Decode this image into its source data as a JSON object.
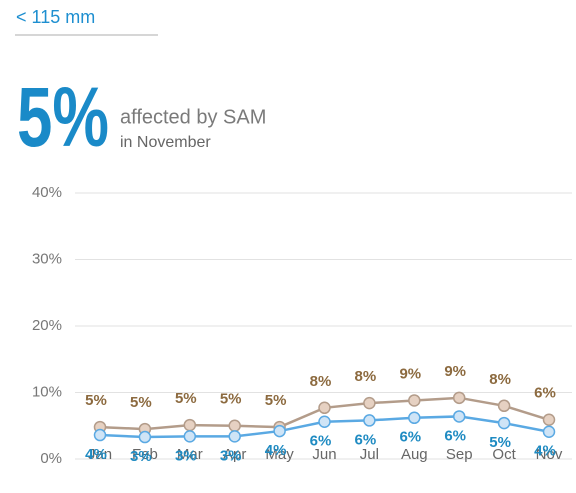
{
  "nav": {
    "back_link": "< 115 mm"
  },
  "headline": {
    "figure": "5%",
    "text": "affected by SAM",
    "subtext": "in November"
  },
  "chart_data": {
    "type": "line",
    "categories": [
      "Jan",
      "Feb",
      "Mar",
      "Apr",
      "May",
      "Jun",
      "Jul",
      "Aug",
      "Sep",
      "Oct",
      "Nov"
    ],
    "series": [
      {
        "color": "#b39c8a",
        "marker_color": "#e6d1c2",
        "label_color": "#8c6a3f",
        "label_position": "above",
        "values": [
          4.8,
          4.5,
          5.1,
          5.0,
          4.8,
          7.7,
          8.4,
          8.8,
          9.2,
          8.0,
          5.9
        ],
        "value_labels": [
          "5%",
          "5%",
          "5%",
          "5%",
          "5%",
          "8%",
          "8%",
          "9%",
          "9%",
          "8%",
          "6%"
        ]
      },
      {
        "color": "#5aa9e3",
        "marker_color": "#cfe4f6",
        "label_color": "#1f8bc2",
        "label_position": "below",
        "values": [
          3.6,
          3.3,
          3.4,
          3.4,
          4.2,
          5.6,
          5.8,
          6.2,
          6.4,
          5.4,
          4.1
        ],
        "value_labels": [
          "4%",
          "3%",
          "3%",
          "3%",
          "4%",
          "6%",
          "6%",
          "6%",
          "6%",
          "5%",
          "4%"
        ]
      }
    ],
    "ylim": [
      0,
      40
    ],
    "yticks": [
      {
        "value": 0,
        "label": "0%"
      },
      {
        "value": 10,
        "label": "10%"
      },
      {
        "value": 20,
        "label": "20%"
      },
      {
        "value": 30,
        "label": "30%"
      },
      {
        "value": 40,
        "label": "40%"
      }
    ],
    "grid": true
  }
}
